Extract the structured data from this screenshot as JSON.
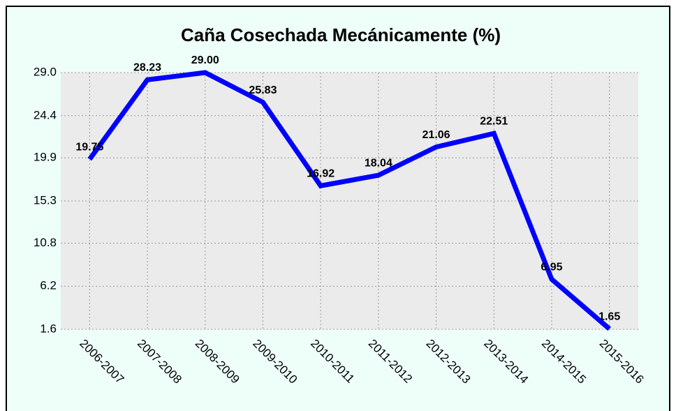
{
  "chart_data": {
    "type": "line",
    "title": "Caña Cosechada Mecánicamente (%)",
    "categories": [
      "2006-2007",
      "2007-2008",
      "2008-2009",
      "2009-2010",
      "2010-2011",
      "2011-2012",
      "2012-2013",
      "2013-2014",
      "2014-2015",
      "2015-2016"
    ],
    "series": [
      {
        "name": "Caña Cosechada Mecánicamente",
        "color": "#0000ff",
        "values": [
          19.75,
          28.23,
          29.0,
          25.83,
          16.92,
          18.04,
          21.06,
          22.51,
          6.95,
          1.65
        ],
        "value_labels": [
          "19.75",
          "28.23",
          "29.00",
          "25.83",
          "16.92",
          "18.04",
          "21.06",
          "22.51",
          "6.95",
          "1.65"
        ]
      }
    ],
    "ylim": [
      1.6,
      29.0
    ],
    "yticks": [
      1.6,
      6.2,
      10.8,
      15.3,
      19.9,
      24.4,
      {
        "value": 29,
        "label": "29.0"
      }
    ],
    "grid": true
  }
}
